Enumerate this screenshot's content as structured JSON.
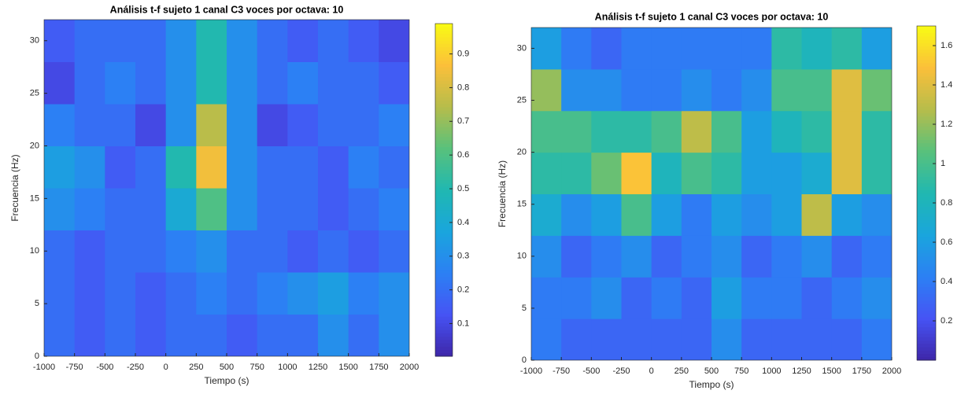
{
  "chart_data": [
    {
      "type": "heatmap",
      "title": "Análisis t-f sujeto 1 canal C3 voces por octava: 10",
      "xlabel": "Tiempo (s)",
      "ylabel": "Frecuencia (Hz)",
      "colormap": "parula",
      "x": [
        -875,
        -625,
        -375,
        -125,
        125,
        375,
        625,
        875,
        1125,
        1375,
        1625,
        1875
      ],
      "y": [
        2,
        6,
        10,
        14,
        18,
        22,
        26,
        30
      ],
      "values": [
        [
          0.2,
          0.15,
          0.2,
          0.15,
          0.2,
          0.2,
          0.15,
          0.2,
          0.2,
          0.3,
          0.2,
          0.3
        ],
        [
          0.2,
          0.15,
          0.2,
          0.15,
          0.2,
          0.25,
          0.2,
          0.25,
          0.3,
          0.35,
          0.25,
          0.3
        ],
        [
          0.2,
          0.15,
          0.2,
          0.2,
          0.25,
          0.3,
          0.2,
          0.2,
          0.15,
          0.2,
          0.15,
          0.2
        ],
        [
          0.3,
          0.25,
          0.2,
          0.2,
          0.4,
          0.6,
          0.3,
          0.2,
          0.2,
          0.15,
          0.2,
          0.25
        ],
        [
          0.35,
          0.3,
          0.15,
          0.2,
          0.5,
          0.85,
          0.3,
          0.2,
          0.2,
          0.15,
          0.25,
          0.2
        ],
        [
          0.25,
          0.2,
          0.2,
          0.1,
          0.3,
          0.75,
          0.3,
          0.1,
          0.15,
          0.2,
          0.2,
          0.25
        ],
        [
          0.1,
          0.2,
          0.25,
          0.2,
          0.3,
          0.5,
          0.3,
          0.2,
          0.25,
          0.2,
          0.2,
          0.15
        ],
        [
          0.15,
          0.2,
          0.2,
          0.2,
          0.3,
          0.5,
          0.3,
          0.2,
          0.15,
          0.2,
          0.15,
          0.1
        ]
      ],
      "xlim": [
        -1000,
        2000
      ],
      "xticks": [
        -1000,
        -750,
        -500,
        -250,
        0,
        250,
        500,
        750,
        1000,
        1250,
        1500,
        1750,
        2000
      ],
      "ylim": [
        0,
        32
      ],
      "yticks": [
        0,
        5,
        10,
        15,
        20,
        25,
        30
      ],
      "clim": [
        0.003,
        0.99
      ],
      "cticks": [
        0.1,
        0.2,
        0.3,
        0.4,
        0.5,
        0.6,
        0.7,
        0.8,
        0.9
      ]
    },
    {
      "type": "heatmap",
      "title": "Análisis t-f sujeto 1 canal C3 voces por octava: 10",
      "xlabel": "Tiempo (s)",
      "ylabel": "Frecuencia (Hz)",
      "colormap": "parula",
      "x": [
        -875,
        -625,
        -375,
        -125,
        125,
        375,
        625,
        875,
        1125,
        1375,
        1625,
        1875
      ],
      "y": [
        2,
        6,
        10,
        14,
        18,
        22,
        26,
        30
      ],
      "values": [
        [
          0.4,
          0.3,
          0.3,
          0.3,
          0.3,
          0.3,
          0.5,
          0.3,
          0.3,
          0.3,
          0.3,
          0.4
        ],
        [
          0.4,
          0.4,
          0.5,
          0.3,
          0.4,
          0.3,
          0.6,
          0.4,
          0.4,
          0.3,
          0.4,
          0.5
        ],
        [
          0.5,
          0.3,
          0.4,
          0.5,
          0.3,
          0.4,
          0.5,
          0.3,
          0.4,
          0.5,
          0.3,
          0.4
        ],
        [
          0.7,
          0.5,
          0.6,
          1.0,
          0.6,
          0.4,
          0.6,
          0.5,
          0.6,
          1.3,
          0.6,
          0.5
        ],
        [
          0.9,
          0.9,
          1.1,
          1.5,
          0.8,
          1.0,
          0.9,
          0.6,
          0.6,
          0.7,
          1.4,
          0.9
        ],
        [
          1.0,
          1.0,
          0.9,
          0.9,
          1.0,
          1.3,
          1.0,
          0.6,
          0.8,
          0.9,
          1.4,
          0.9
        ],
        [
          1.2,
          0.5,
          0.5,
          0.4,
          0.4,
          0.5,
          0.4,
          0.5,
          1.0,
          1.0,
          1.4,
          1.1
        ],
        [
          0.6,
          0.4,
          0.3,
          0.4,
          0.4,
          0.4,
          0.4,
          0.4,
          0.9,
          0.8,
          0.9,
          0.6
        ]
      ],
      "xlim": [
        -1000,
        2000
      ],
      "xticks": [
        -1000,
        -750,
        -500,
        -250,
        0,
        250,
        500,
        750,
        1000,
        1250,
        1500,
        1750,
        2000
      ],
      "ylim": [
        0,
        32
      ],
      "yticks": [
        0,
        5,
        10,
        15,
        20,
        25,
        30
      ],
      "clim": [
        0,
        1.7
      ],
      "cticks": [
        0.2,
        0.4,
        0.6,
        0.8,
        1,
        1.2,
        1.4,
        1.6
      ]
    }
  ]
}
